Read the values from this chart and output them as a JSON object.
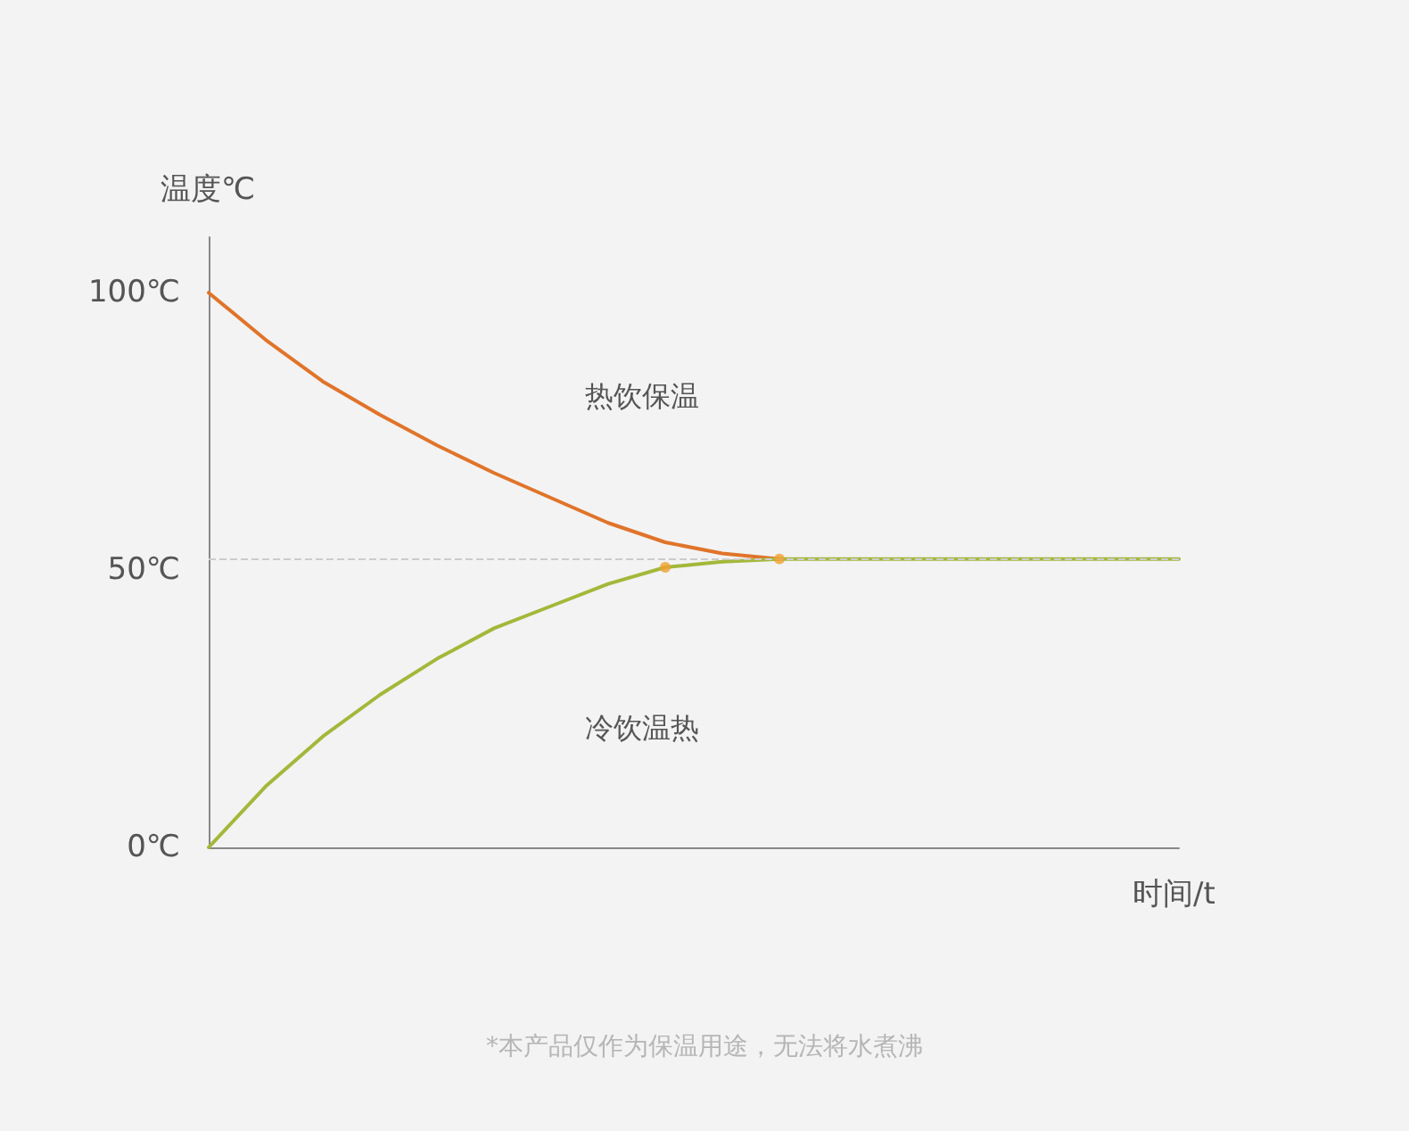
{
  "chart_data": {
    "type": "line",
    "ylabel": "温度℃",
    "xlabel": "时间/t",
    "categories": [
      null,
      null,
      null,
      null,
      null,
      null,
      null,
      null,
      null,
      null,
      null,
      null,
      null,
      null,
      null,
      null,
      null,
      null
    ],
    "series": [
      {
        "color": "#e0742a",
        "values": [
          100,
          91.5,
          84,
          78,
          72.5,
          67.5,
          63,
          58.5,
          55,
          53,
          52,
          null,
          null,
          null,
          null,
          null,
          null,
          null
        ]
      },
      {
        "color": "#a3b83a",
        "values": [
          0,
          11,
          20,
          27.5,
          34,
          39.5,
          43.5,
          47.5,
          50.5,
          51.5,
          52,
          52,
          52,
          52,
          52,
          52,
          52,
          52
        ]
      },
      {
        "type": "scatter",
        "marker": "circle",
        "color": "#f0a030",
        "values": [
          null,
          null,
          null,
          null,
          null,
          null,
          null,
          null,
          50.5,
          null,
          52,
          null,
          null,
          null,
          null,
          null,
          null,
          null
        ]
      }
    ],
    "ylim": [
      0,
      110
    ],
    "yticks": [
      {
        "value": 0,
        "label": "0℃"
      },
      {
        "value": 50,
        "label": "50℃"
      },
      {
        "value": 100,
        "label": "100℃"
      }
    ],
    "tick_labels": "y",
    "grid": false,
    "marker": "none",
    "line_style": "solid",
    "ref_lines": [
      {
        "axis": "y",
        "value": 52,
        "color": "#cccccc",
        "line_style": "dashed"
      }
    ],
    "annotations": [
      "热饮保温",
      "冷饮温热",
      "*本产品仅作为保温用途，无法将水煮沸"
    ]
  }
}
